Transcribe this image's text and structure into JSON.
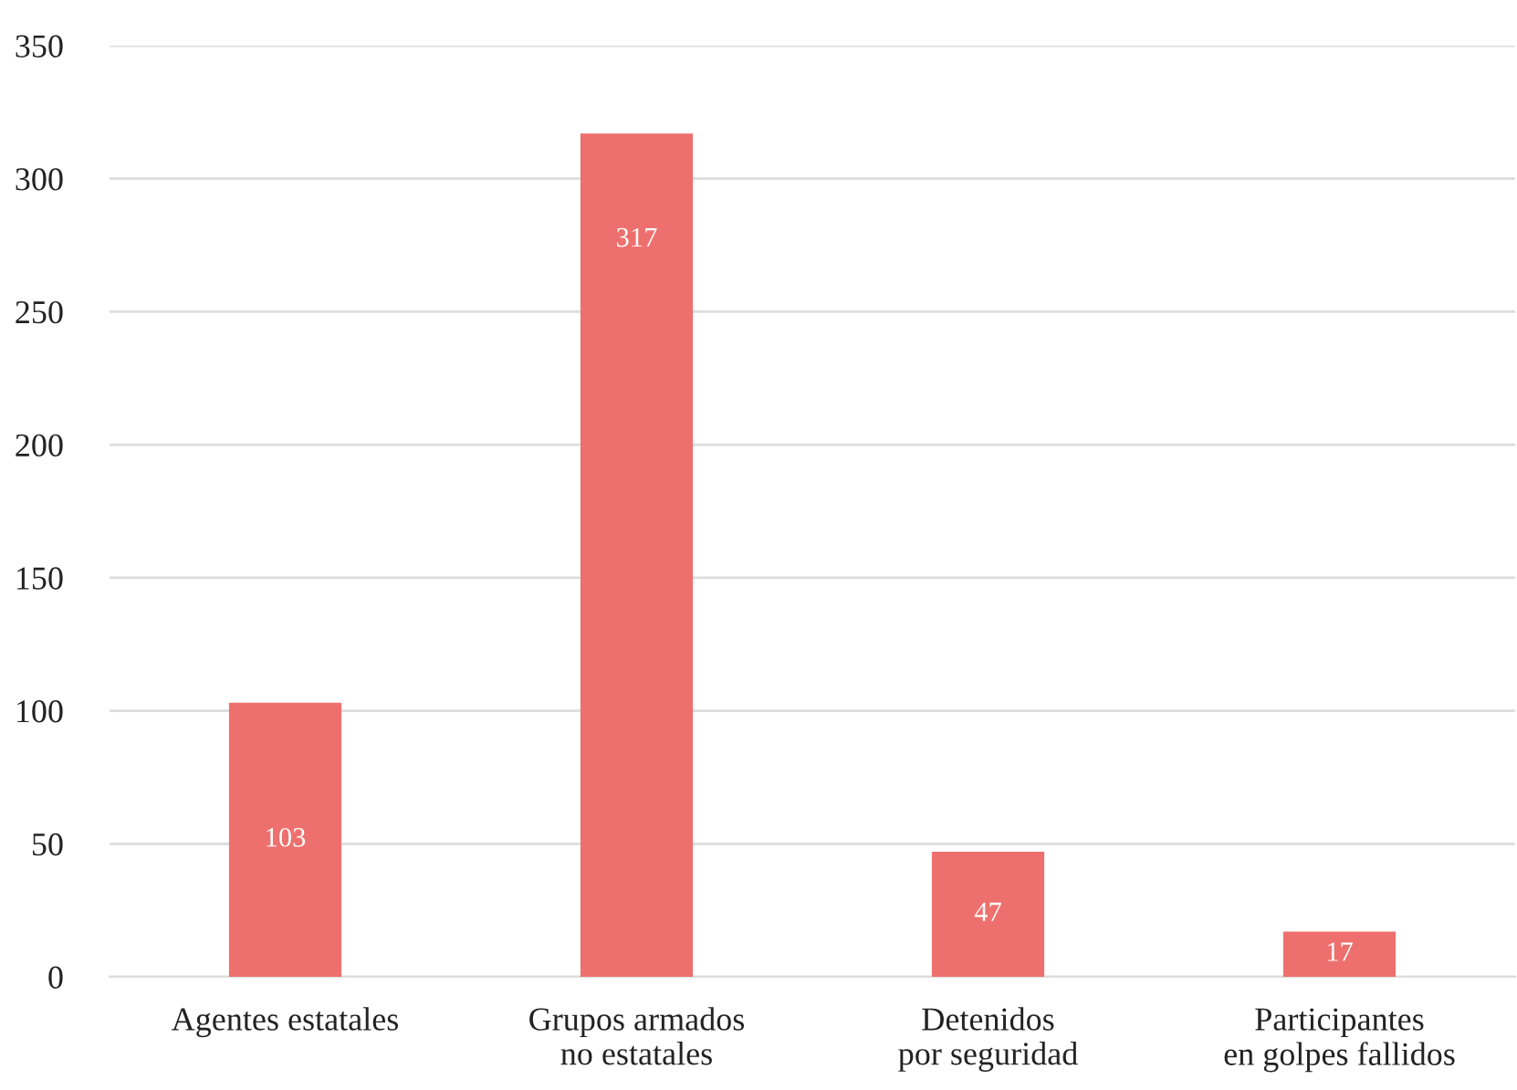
{
  "chart_data": {
    "type": "bar",
    "categories": [
      "Agentes estatales",
      "Grupos armados\nno estatales",
      "Detenidos\npor seguridad",
      "Participantes\nen golpes fallidos"
    ],
    "values": [
      103,
      317,
      47,
      17
    ],
    "color": "#ee706e",
    "ylim": [
      0,
      350
    ],
    "yticks": [
      0,
      50,
      100,
      150,
      200,
      250,
      300,
      350
    ],
    "grid": "y",
    "data_labels": true
  }
}
